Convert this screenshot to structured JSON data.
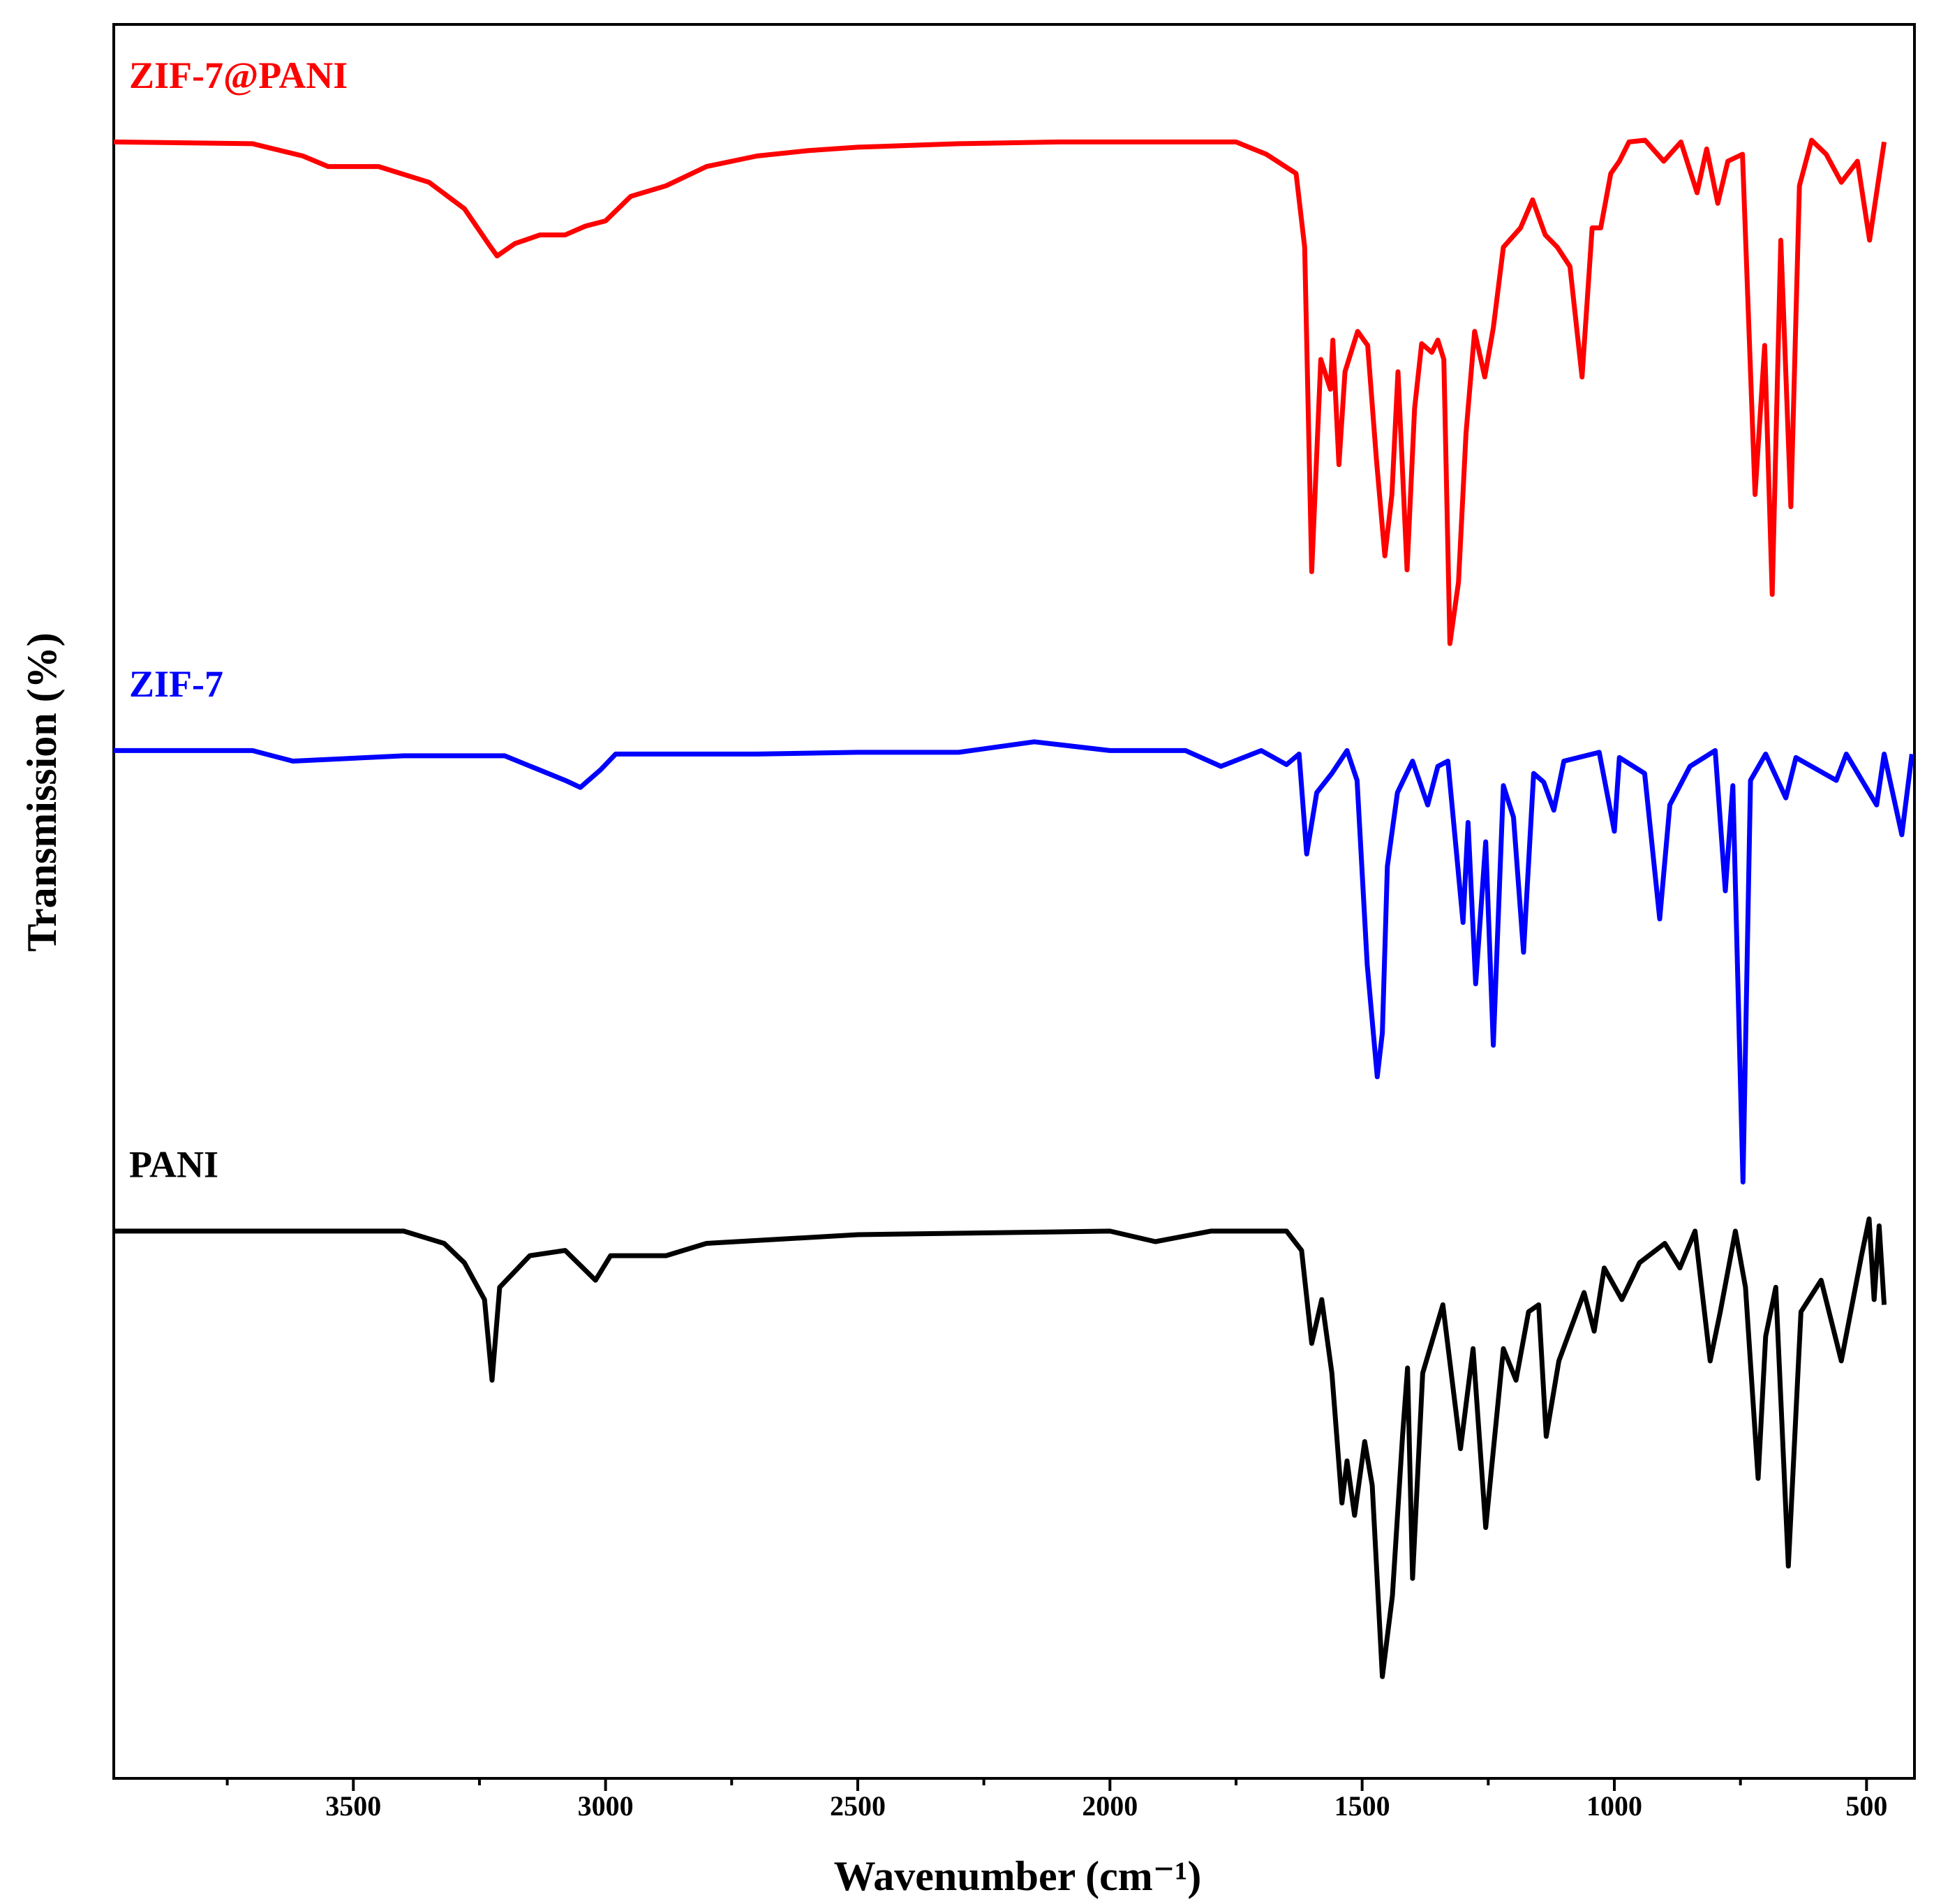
{
  "chart_data": {
    "type": "line",
    "x_label": "Wavenumber (cm⁻¹)",
    "y_label": "Transmission (%)",
    "xlim": [
      3975,
      405
    ],
    "ylim": [
      0,
      100
    ],
    "xticks": [
      3500,
      3000,
      2500,
      2000,
      1500,
      1000,
      500
    ],
    "xminorticks": [
      3750,
      3250,
      2750,
      2250,
      1750,
      1250,
      750
    ],
    "series": [
      {
        "name": "ZIF-7@PANI",
        "color": "#ff0000",
        "x": [
          3975,
          3700,
          3600,
          3550,
          3450,
          3350,
          3280,
          3230,
          3215,
          3180,
          3130,
          3080,
          3040,
          3000,
          2950,
          2880,
          2800,
          2700,
          2600,
          2500,
          2300,
          2100,
          1900,
          1750,
          1690,
          1631,
          1614,
          1600,
          1582,
          1563,
          1558,
          1546,
          1534,
          1509,
          1489,
          1472,
          1455,
          1441,
          1429,
          1411,
          1396,
          1382,
          1362,
          1350,
          1338,
          1326,
          1309,
          1294,
          1277,
          1257,
          1240,
          1220,
          1186,
          1162,
          1137,
          1113,
          1088,
          1064,
          1044,
          1027,
          1007,
          990,
          971,
          939,
          902,
          868,
          836,
          817,
          795,
          775,
          746,
          721,
          702,
          687,
          670,
          650,
          633,
          609,
          580,
          550,
          518,
          494,
          465
        ],
        "values": [
          93.3,
          93.2,
          92.5,
          91.9,
          91.9,
          91.0,
          89.5,
          87.4,
          86.8,
          87.5,
          88.0,
          88.0,
          88.5,
          88.8,
          90.2,
          90.8,
          91.9,
          92.5,
          92.8,
          93.0,
          93.2,
          93.3,
          93.3,
          93.3,
          92.6,
          91.5,
          87.3,
          68.8,
          80.9,
          79.2,
          82.0,
          74.9,
          80.2,
          82.5,
          81.7,
          75.3,
          69.7,
          73.2,
          80.2,
          68.9,
          78.1,
          81.8,
          81.3,
          82.0,
          80.9,
          64.7,
          68.2,
          76.7,
          82.5,
          79.9,
          82.7,
          87.3,
          88.4,
          90.0,
          88.0,
          87.3,
          86.2,
          79.9,
          88.4,
          88.4,
          91.5,
          92.2,
          93.3,
          93.4,
          92.2,
          93.3,
          90.4,
          92.9,
          89.8,
          92.2,
          92.6,
          73.2,
          81.7,
          67.5,
          87.7,
          72.5,
          90.8,
          93.4,
          92.6,
          91.0,
          92.2,
          87.7,
          93.3
        ]
      },
      {
        "name": "ZIF-7",
        "color": "#0000ff",
        "x": [
          3975,
          3700,
          3620,
          3400,
          3200,
          3080,
          3050,
          3010,
          2980,
          2700,
          2500,
          2300,
          2150,
          2000,
          1850,
          1780,
          1700,
          1650,
          1625,
          1610,
          1590,
          1560,
          1530,
          1510,
          1490,
          1470,
          1460,
          1450,
          1430,
          1400,
          1370,
          1350,
          1330,
          1300,
          1290,
          1275,
          1255,
          1240,
          1220,
          1200,
          1180,
          1160,
          1140,
          1120,
          1100,
          1030,
          1000,
          990,
          940,
          910,
          890,
          850,
          800,
          780,
          765,
          745,
          730,
          700,
          660,
          640,
          560,
          540,
          480,
          465,
          430,
          410
        ],
        "values": [
          58.6,
          58.6,
          58.0,
          58.3,
          58.3,
          56.9,
          56.5,
          57.5,
          58.4,
          58.4,
          58.5,
          58.5,
          59.1,
          58.6,
          58.6,
          57.7,
          58.6,
          57.8,
          58.4,
          52.7,
          56.2,
          57.3,
          58.6,
          56.9,
          46.4,
          40.0,
          42.5,
          52.0,
          56.2,
          58.0,
          55.5,
          57.7,
          58.0,
          48.8,
          54.5,
          45.3,
          53.4,
          41.8,
          56.6,
          54.8,
          47.1,
          57.3,
          56.8,
          55.2,
          58.0,
          58.5,
          54.0,
          58.2,
          57.3,
          49.0,
          55.5,
          57.7,
          58.6,
          50.6,
          56.6,
          34.0,
          56.9,
          58.4,
          55.9,
          58.2,
          56.9,
          58.4,
          55.5,
          58.4,
          53.8,
          58.4
        ]
      },
      {
        "name": "PANI",
        "color": "#000000",
        "x": [
          3975,
          3400,
          3320,
          3280,
          3240,
          3225,
          3210,
          3150,
          3080,
          3020,
          2990,
          2880,
          2800,
          2500,
          2000,
          1910,
          1800,
          1650,
          1620,
          1600,
          1580,
          1560,
          1540,
          1530,
          1515,
          1495,
          1480,
          1460,
          1440,
          1420,
          1410,
          1400,
          1380,
          1340,
          1305,
          1280,
          1255,
          1220,
          1195,
          1170,
          1150,
          1135,
          1110,
          1060,
          1040,
          1020,
          985,
          950,
          900,
          870,
          840,
          810,
          790,
          760,
          740,
          715,
          700,
          680,
          655,
          630,
          590,
          550,
          510,
          495,
          485,
          475,
          465
        ],
        "values": [
          31.2,
          31.2,
          30.5,
          29.4,
          27.3,
          22.7,
          28.0,
          29.8,
          30.1,
          28.4,
          29.8,
          29.8,
          30.5,
          31.0,
          31.2,
          30.6,
          31.2,
          31.2,
          30.1,
          24.8,
          27.3,
          23.1,
          15.7,
          18.1,
          15.0,
          19.2,
          16.7,
          5.8,
          10.4,
          19.5,
          23.4,
          11.4,
          23.1,
          27.0,
          18.8,
          24.5,
          14.3,
          24.5,
          22.7,
          26.6,
          27.0,
          19.5,
          23.8,
          27.7,
          25.5,
          29.1,
          27.3,
          29.4,
          30.5,
          29.1,
          31.2,
          23.8,
          26.6,
          31.2,
          28.0,
          17.1,
          25.2,
          28.0,
          12.1,
          26.6,
          28.4,
          23.8,
          29.8,
          31.9,
          27.3,
          31.5,
          27.0
        ]
      }
    ]
  }
}
